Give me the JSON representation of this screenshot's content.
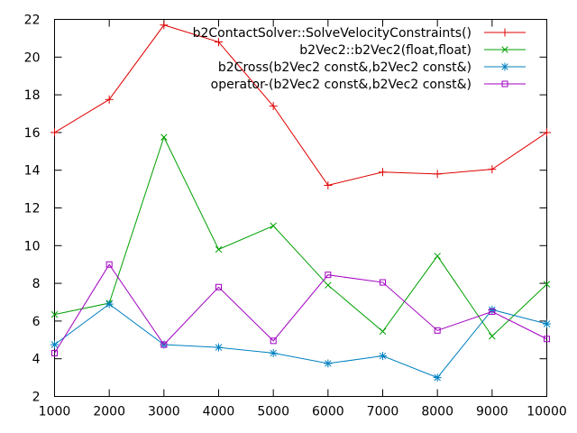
{
  "chart_data": {
    "type": "line",
    "x": [
      1000,
      2000,
      3000,
      4000,
      5000,
      6000,
      7000,
      8000,
      9000,
      10000
    ],
    "xlim": [
      1000,
      10000
    ],
    "ylim": [
      2,
      22
    ],
    "xticks": [
      "1000",
      "2000",
      "3000",
      "4000",
      "5000",
      "6000",
      "7000",
      "8000",
      "9000",
      "10000"
    ],
    "yticks": [
      "2",
      "4",
      "6",
      "8",
      "10",
      "12",
      "14",
      "16",
      "18",
      "20",
      "22"
    ],
    "grid": false,
    "legend_position": "top-right",
    "series": [
      {
        "name": "b2ContactSolver::SolveVelocityConstraints()",
        "color": "#e00000",
        "marker": "plus",
        "values": [
          16.0,
          17.75,
          21.7,
          20.8,
          17.4,
          13.2,
          13.9,
          13.8,
          14.05,
          16.0
        ]
      },
      {
        "name": "b2Vec2::b2Vec2(float,float)",
        "color": "#00a000",
        "marker": "cross",
        "values": [
          6.35,
          6.95,
          15.75,
          9.8,
          11.05,
          7.9,
          5.45,
          9.45,
          5.2,
          7.95
        ]
      },
      {
        "name": "b2Cross(b2Vec2 const&,b2Vec2 const&)",
        "color": "#0080c0",
        "marker": "star",
        "values": [
          4.75,
          6.9,
          4.75,
          4.6,
          4.3,
          3.75,
          4.15,
          3.0,
          6.6,
          5.85
        ]
      },
      {
        "name": "operator-(b2Vec2 const&,b2Vec2 const&)",
        "color": "#a000c0",
        "marker": "square",
        "values": [
          4.3,
          9.0,
          4.75,
          7.8,
          4.95,
          8.45,
          8.05,
          5.5,
          6.5,
          5.05
        ]
      }
    ]
  }
}
